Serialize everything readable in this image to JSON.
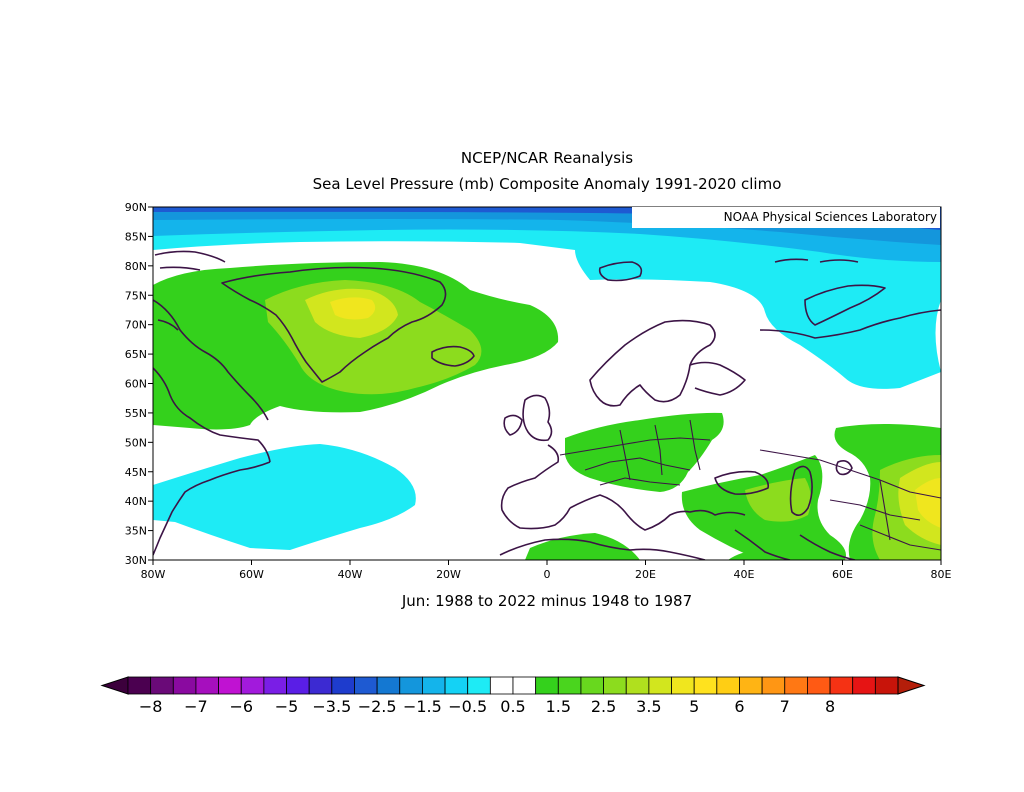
{
  "title_line1": "NCEP/NCAR Reanalysis",
  "title_line2": "Sea Level Pressure (mb) Composite Anomaly 1991-2020 climo",
  "credit": "NOAA Physical Sciences Laboratory",
  "subtitle": "Jun: 1988 to 2022 minus 1948 to 1987",
  "map": {
    "lon_range": [
      -80,
      80
    ],
    "lat_range": [
      30,
      90
    ],
    "lat_ticks": [
      {
        "value": 90,
        "label": "90N"
      },
      {
        "value": 85,
        "label": "85N"
      },
      {
        "value": 80,
        "label": "80N"
      },
      {
        "value": 75,
        "label": "75N"
      },
      {
        "value": 70,
        "label": "70N"
      },
      {
        "value": 65,
        "label": "65N"
      },
      {
        "value": 60,
        "label": "60N"
      },
      {
        "value": 55,
        "label": "55N"
      },
      {
        "value": 50,
        "label": "50N"
      },
      {
        "value": 45,
        "label": "45N"
      },
      {
        "value": 40,
        "label": "40N"
      },
      {
        "value": 35,
        "label": "35N"
      },
      {
        "value": 30,
        "label": "30N"
      }
    ],
    "lon_ticks": [
      {
        "value": -80,
        "label": "80W"
      },
      {
        "value": -60,
        "label": "60W"
      },
      {
        "value": -40,
        "label": "40W"
      },
      {
        "value": -20,
        "label": "20W"
      },
      {
        "value": 0,
        "label": "0"
      },
      {
        "value": 20,
        "label": "20E"
      },
      {
        "value": 40,
        "label": "40E"
      },
      {
        "value": 60,
        "label": "60E"
      },
      {
        "value": 80,
        "label": "80E"
      }
    ]
  },
  "colorbar": {
    "labels": [
      "-8",
      "-7",
      "-6",
      "-5",
      "-3.5",
      "-2.5",
      "-1.5",
      "-0.5",
      "0.5",
      "1.5",
      "2.5",
      "3.5",
      "5",
      "6",
      "7",
      "8"
    ],
    "colors": [
      "#4b0050",
      "#6a0a78",
      "#8a0aa0",
      "#a60fbe",
      "#c012d2",
      "#a21adc",
      "#7a1ee6",
      "#5a1ee6",
      "#3c2ad2",
      "#1e3ccd",
      "#1e5ad2",
      "#1478d2",
      "#1496dc",
      "#14b4eb",
      "#14d2f5",
      "#1eebf5",
      "#ffffff",
      "#ffffff",
      "#34d11c",
      "#4ad51e",
      "#68d81e",
      "#8cdc1e",
      "#b0e01e",
      "#d2e61e",
      "#f0e61e",
      "#ffe21e",
      "#ffce14",
      "#ffb414",
      "#ff9614",
      "#ff7814",
      "#ff5a14",
      "#f53214",
      "#e61414",
      "#c8140a"
    ],
    "end_left": "#3c003c",
    "end_right": "#b41e0a"
  },
  "colors": {
    "neg_dark": "#1e5ad2",
    "neg_mid": "#1496dc",
    "neg_light": "#14b4eb",
    "neg_cyan": "#1eebf5",
    "pos_green": "#34d11c",
    "pos_lime": "#8cdc1e",
    "pos_yellow": "#d2e61e",
    "pos_gold": "#f0e61e",
    "coast": "#3c1446"
  }
}
